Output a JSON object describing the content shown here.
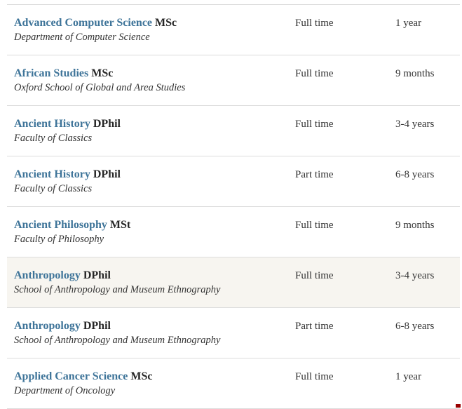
{
  "theme": {
    "link_color": "#3e7499",
    "text_dark": "#262626",
    "subtitle_color": "#333333",
    "border_color": "#dcdcdc",
    "highlight_bg": "#f7f5f0",
    "mark_color": "#990000"
  },
  "table": {
    "rows": [
      {
        "title": "Advanced Computer Science",
        "degree": "MSc",
        "department": "Department of Computer Science",
        "mode": "Full time",
        "duration": "1 year",
        "highlighted": false
      },
      {
        "title": "African Studies",
        "degree": "MSc",
        "department": "Oxford School of Global and Area Studies",
        "mode": "Full time",
        "duration": "9 months",
        "highlighted": false
      },
      {
        "title": "Ancient History",
        "degree": "DPhil",
        "department": "Faculty of Classics",
        "mode": "Full time",
        "duration": "3-4 years",
        "highlighted": false
      },
      {
        "title": "Ancient History",
        "degree": "DPhil",
        "department": "Faculty of Classics",
        "mode": "Part time",
        "duration": "6-8 years",
        "highlighted": false
      },
      {
        "title": "Ancient Philosophy",
        "degree": "MSt",
        "department": "Faculty of Philosophy",
        "mode": "Full time",
        "duration": "9 months",
        "highlighted": false
      },
      {
        "title": "Anthropology",
        "degree": "DPhil",
        "department": "School of Anthropology and Museum Ethnography",
        "mode": "Full time",
        "duration": "3-4 years",
        "highlighted": true
      },
      {
        "title": "Anthropology",
        "degree": "DPhil",
        "department": "School of Anthropology and Museum Ethnography",
        "mode": "Part time",
        "duration": "6-8 years",
        "highlighted": false
      },
      {
        "title": "Applied Cancer Science",
        "degree": "MSc",
        "department": "Department of Oncology",
        "mode": "Full time",
        "duration": "1 year",
        "highlighted": false
      }
    ]
  }
}
